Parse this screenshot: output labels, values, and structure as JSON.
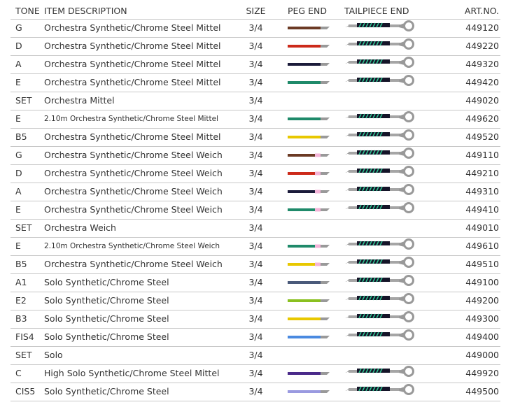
{
  "header": {
    "tone": "TONE",
    "description": "ITEM DESCRIPTION",
    "size": "SIZE",
    "peg_end": "PEG END",
    "tailpiece_end": "TAILPIECE END",
    "art_no": "ART.NO."
  },
  "rows": [
    {
      "tone": "G",
      "description": "Orchestra Synthetic/Chrome Steel Mittel",
      "size": "3/4",
      "peg_color": "#6b3a24",
      "pink": false,
      "tail": true,
      "art_no": "449120"
    },
    {
      "tone": "D",
      "description": "Orchestra Synthetic/Chrome Steel Mittel",
      "size": "3/4",
      "peg_color": "#cc2a1a",
      "pink": false,
      "tail": true,
      "art_no": "449220"
    },
    {
      "tone": "A",
      "description": "Orchestra Synthetic/Chrome Steel Mittel",
      "size": "3/4",
      "peg_color": "#1b1b3a",
      "pink": false,
      "tail": true,
      "art_no": "449320"
    },
    {
      "tone": "E",
      "description": "Orchestra Synthetic/Chrome Steel Mittel",
      "size": "3/4",
      "peg_color": "#1f8a6a",
      "pink": false,
      "tail": true,
      "art_no": "449420"
    },
    {
      "tone": "SET",
      "description": "Orchestra Mittel",
      "size": "3/4",
      "peg_color": null,
      "pink": false,
      "tail": false,
      "art_no": "449020"
    },
    {
      "tone": "E",
      "description": "2.10m Orchestra Synthetic/Chrome Steel Mittel",
      "size": "3/4",
      "peg_color": "#1f8a6a",
      "pink": false,
      "tail": true,
      "art_no": "449620",
      "small": true
    },
    {
      "tone": "B5",
      "description": "Orchestra Synthetic/Chrome Steel Mittel",
      "size": "3/4",
      "peg_color": "#e8c800",
      "pink": false,
      "tail": true,
      "art_no": "449520"
    },
    {
      "tone": "G",
      "description": "Orchestra Synthetic/Chrome Steel Weich",
      "size": "3/4",
      "peg_color": "#6b3a24",
      "pink": true,
      "tail": true,
      "art_no": "449110"
    },
    {
      "tone": "D",
      "description": "Orchestra Synthetic/Chrome Steel Weich",
      "size": "3/4",
      "peg_color": "#cc2a1a",
      "pink": true,
      "tail": true,
      "art_no": "449210"
    },
    {
      "tone": "A",
      "description": "Orchestra Synthetic/Chrome Steel Weich",
      "size": "3/4",
      "peg_color": "#1b1b3a",
      "pink": true,
      "tail": true,
      "art_no": "449310"
    },
    {
      "tone": "E",
      "description": "Orchestra Synthetic/Chrome Steel Weich",
      "size": "3/4",
      "peg_color": "#1f8a6a",
      "pink": true,
      "tail": true,
      "art_no": "449410"
    },
    {
      "tone": "SET",
      "description": "Orchestra Weich",
      "size": "3/4",
      "peg_color": null,
      "pink": false,
      "tail": false,
      "art_no": "449010"
    },
    {
      "tone": "E",
      "description": "2.10m Orchestra Synthetic/Chrome Steel Weich",
      "size": "3/4",
      "peg_color": "#1f8a6a",
      "pink": true,
      "tail": true,
      "art_no": "449610",
      "small": true
    },
    {
      "tone": "B5",
      "description": "Orchestra Synthetic/Chrome Steel Weich",
      "size": "3/4",
      "peg_color": "#e8c800",
      "pink": true,
      "tail": true,
      "art_no": "449510"
    },
    {
      "tone": "A1",
      "description": "Solo Synthetic/Chrome Steel",
      "size": "3/4",
      "peg_color": "#4a5a7a",
      "pink": false,
      "tail": true,
      "art_no": "449100"
    },
    {
      "tone": "E2",
      "description": "Solo Synthetic/Chrome Steel",
      "size": "3/4",
      "peg_color": "#8ac020",
      "pink": false,
      "tail": true,
      "art_no": "449200"
    },
    {
      "tone": "B3",
      "description": "Solo Synthetic/Chrome Steel",
      "size": "3/4",
      "peg_color": "#e8c800",
      "pink": false,
      "tail": true,
      "art_no": "449300"
    },
    {
      "tone": "FIS4",
      "description": "Solo Synthetic/Chrome Steel",
      "size": "3/4",
      "peg_color": "#4a8ae0",
      "pink": false,
      "tail": true,
      "art_no": "449400"
    },
    {
      "tone": "SET",
      "description": "Solo",
      "size": "3/4",
      "peg_color": null,
      "pink": false,
      "tail": false,
      "art_no": "449000"
    },
    {
      "tone": "C",
      "description": "High Solo Synthetic/Chrome Steel Mittel",
      "size": "3/4",
      "peg_color": "#4a2a8a",
      "pink": false,
      "tail": true,
      "art_no": "449920"
    },
    {
      "tone": "CIS5",
      "description": "Solo Synthetic/Chrome Steel",
      "size": "3/4",
      "peg_color": "#9a9ae0",
      "pink": false,
      "tail": true,
      "art_no": "449500"
    }
  ]
}
